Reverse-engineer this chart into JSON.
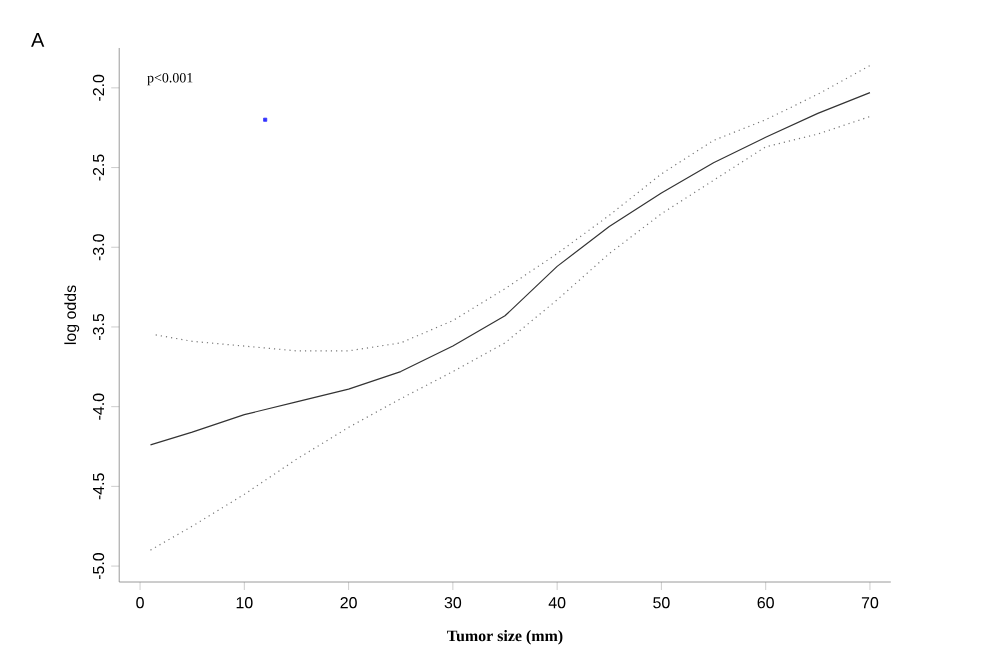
{
  "chart_data": {
    "type": "line",
    "xlabel": "**Tumor size (mm)**",
    "ylabel": "log odds",
    "annotations": [
      "A",
      "p<0.001"
    ],
    "xlim": [
      -2,
      72
    ],
    "ylim": [
      -5.1,
      -1.75
    ],
    "xticks": [
      0,
      10,
      20,
      30,
      40,
      50,
      60,
      70
    ],
    "yticks": [
      {
        "value": -5.0,
        "label": "-5.0"
      },
      {
        "value": -4.5,
        "label": "-4.5"
      },
      {
        "value": -4.0,
        "label": "-4.0"
      },
      {
        "value": -3.5,
        "label": "-3.5"
      },
      {
        "value": -3.0,
        "label": "-3.0"
      },
      {
        "value": -2.5,
        "label": "-2.5"
      },
      {
        "value": -2.0,
        "label": "-2.0"
      }
    ],
    "grid": false,
    "legend": false,
    "series": [
      {
        "color": "#333333",
        "line_style": "solid",
        "x": [
          1,
          5,
          10,
          15,
          20,
          25,
          30,
          35,
          40,
          45,
          50,
          55,
          60,
          65,
          70
        ],
        "values": [
          -4.24,
          -4.16,
          -4.05,
          -3.97,
          -3.89,
          -3.78,
          -3.62,
          -3.43,
          -3.12,
          -2.87,
          -2.66,
          -2.47,
          -2.31,
          -2.16,
          -2.03
        ]
      },
      {
        "color": "#777777",
        "line_style": "dotted",
        "x": [
          1.5,
          5,
          10,
          15,
          20,
          25,
          30,
          35,
          40,
          45,
          50,
          55,
          60,
          65,
          70
        ],
        "values": [
          -3.55,
          -3.59,
          -3.62,
          -3.65,
          -3.65,
          -3.6,
          -3.46,
          -3.26,
          -3.04,
          -2.8,
          -2.54,
          -2.33,
          -2.2,
          -2.04,
          -1.86
        ]
      },
      {
        "color": "#777777",
        "line_style": "dotted",
        "x": [
          1,
          5,
          10,
          15,
          20,
          25,
          30,
          35,
          40,
          45,
          50,
          55,
          60,
          65,
          70
        ],
        "values": [
          -4.9,
          -4.75,
          -4.55,
          -4.33,
          -4.13,
          -3.95,
          -3.78,
          -3.6,
          -3.33,
          -3.04,
          -2.79,
          -2.58,
          -2.37,
          -2.29,
          -2.18
        ]
      },
      {
        "type": "scatter",
        "color": "#3333ff",
        "marker": "square",
        "x": [
          12
        ],
        "values": [
          -2.2
        ]
      }
    ]
  }
}
